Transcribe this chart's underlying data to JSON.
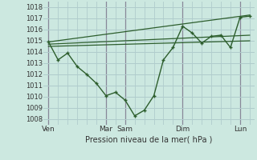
{
  "background_color": "#cce8e0",
  "line_color": "#2d5e2d",
  "grid_color": "#b0cccc",
  "xlabel": "Pression niveau de la mer( hPa )",
  "ylim": [
    1007.5,
    1018.5
  ],
  "yticks": [
    1008,
    1009,
    1010,
    1011,
    1012,
    1013,
    1014,
    1015,
    1016,
    1017,
    1018
  ],
  "xtick_labels": [
    "Ven",
    "Mar",
    "Sam",
    "Dim",
    "Lun"
  ],
  "xtick_positions": [
    0,
    6,
    8,
    14,
    20
  ],
  "xlim": [
    -0.5,
    21.5
  ],
  "main_x": [
    0,
    1,
    2,
    3,
    4,
    5,
    6,
    7,
    8,
    9,
    10,
    11,
    12,
    13,
    14,
    15,
    16,
    17,
    18,
    19,
    20,
    21
  ],
  "main_y": [
    1014.9,
    1013.3,
    1013.9,
    1012.7,
    1012.0,
    1011.2,
    1010.1,
    1010.4,
    1009.7,
    1008.3,
    1008.8,
    1010.1,
    1013.3,
    1014.4,
    1016.3,
    1015.7,
    1014.8,
    1015.4,
    1015.5,
    1014.4,
    1017.1,
    1017.2
  ],
  "trend1_x": [
    0,
    21
  ],
  "trend1_y": [
    1014.9,
    1017.3
  ],
  "trend2_x": [
    0,
    21
  ],
  "trend2_y": [
    1014.7,
    1015.5
  ],
  "trend3_x": [
    0,
    21
  ],
  "trend3_y": [
    1014.5,
    1015.0
  ],
  "vline_positions": [
    6,
    8,
    14,
    20
  ]
}
